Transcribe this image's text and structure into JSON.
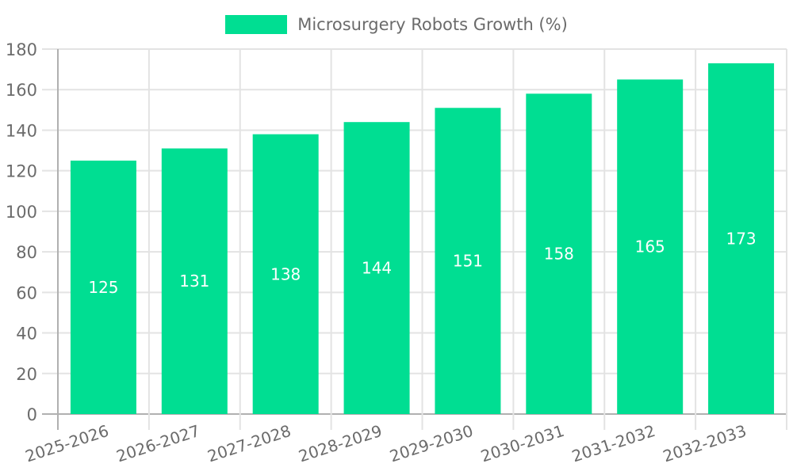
{
  "chart_data": {
    "type": "bar",
    "title": "Microsurgery Robots Growth (%)",
    "categories": [
      "2025-2026",
      "2026-2027",
      "2027-2028",
      "2028-2029",
      "2029-2030",
      "2030-2031",
      "2031-2032",
      "2032-2033"
    ],
    "values": [
      125,
      131,
      138,
      144,
      151,
      158,
      165,
      173
    ],
    "xlabel": "",
    "ylabel": "",
    "ylim": [
      0,
      180
    ],
    "ytick_step": 20,
    "ytick_labels": [
      "0",
      "20",
      "40",
      "60",
      "80",
      "100",
      "120",
      "140",
      "160",
      "180"
    ],
    "grid": true,
    "legend_position": "top",
    "x_label_rotation_deg": -18,
    "bar_color": "#00de92",
    "value_label_color": "#ffffff",
    "axis_label_color": "#6b6b6b",
    "grid_color": "#e3e3e3",
    "axis_line_color": "#b0b0b0"
  }
}
